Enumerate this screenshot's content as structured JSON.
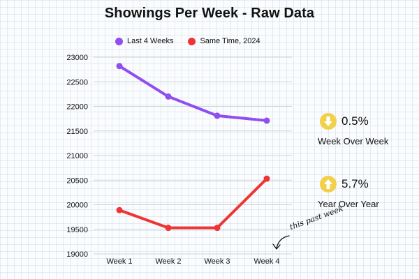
{
  "chart_data": {
    "type": "line",
    "title": "Showings Per Week - Raw Data",
    "xlabel": "",
    "ylabel": "",
    "categories": [
      "Week 1",
      "Week 2",
      "Week 3",
      "Week 4"
    ],
    "yticks": [
      "23000",
      "22500",
      "22000",
      "21500",
      "21000",
      "20500",
      "20000",
      "19500",
      "19000"
    ],
    "ylim": [
      19000,
      23000
    ],
    "grid": true,
    "legend_position": "top",
    "series": [
      {
        "name": "Last 4 Weeks",
        "color": "#8f4ff0",
        "values": [
          22820,
          22200,
          21810,
          21710
        ]
      },
      {
        "name": "Same Time, 2024",
        "color": "#ee3535",
        "values": [
          19890,
          19530,
          19530,
          20530
        ]
      }
    ],
    "annotations": {
      "week_over_week": {
        "value": "0.5%",
        "label": "Week Over Week",
        "direction": "down"
      },
      "year_over_year": {
        "value": "5.7%",
        "label": "Year Over Year",
        "direction": "up"
      },
      "note": "this past week"
    }
  }
}
